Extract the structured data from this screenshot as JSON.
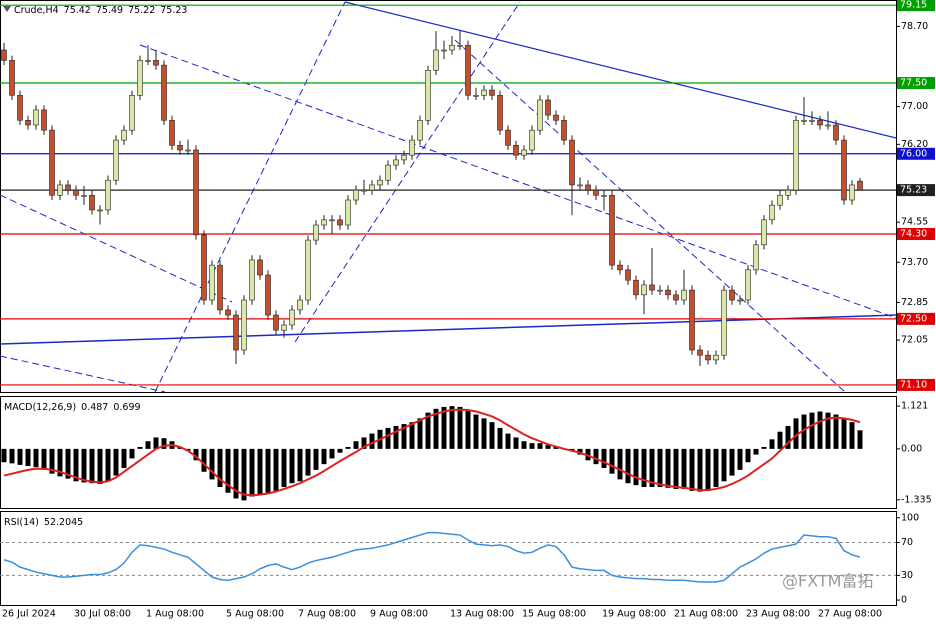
{
  "chart_data": [
    {
      "type": "candlestick",
      "title": "Crude,H4",
      "up_color": "#dbe9a8",
      "down_color": "#c2502e",
      "ylim": [
        70.95,
        79.26
      ],
      "yticks": [
        {
          "value": 78.7,
          "label": "78.70"
        },
        {
          "value": 77,
          "label": "77.00"
        },
        {
          "value": 76.2,
          "label": "76.20"
        },
        74.55,
        {
          "value": 73.7,
          "label": "73.70"
        },
        72.85,
        72.05
      ],
      "levels": [
        {
          "value": 79.15,
          "color": "#00a000"
        },
        {
          "value": 77.5,
          "label": "77.50",
          "color": "#00a000"
        },
        {
          "value": 76,
          "label": "76.00",
          "color": "#1010d0"
        },
        {
          "value": 75.23,
          "color": "#202020"
        },
        {
          "value": 74.3,
          "label": "74.30",
          "color": "#e00000"
        },
        {
          "value": 72.5,
          "label": "72.50",
          "color": "#e00000"
        },
        {
          "value": 71.1,
          "label": "71.10",
          "color": "#e00000"
        }
      ],
      "candles": [
        [
          78.2,
          78.35,
          77.88,
          77.98
        ],
        [
          77.98,
          78.08,
          77.14,
          77.24
        ],
        [
          77.24,
          77.34,
          76.61,
          76.71
        ],
        [
          76.71,
          76.81,
          76.51,
          76.61
        ],
        [
          76.61,
          77.03,
          76.51,
          76.93
        ],
        [
          76.93,
          77.03,
          76.4,
          76.5
        ],
        [
          76.5,
          76.6,
          75.02,
          75.12
        ],
        [
          75.12,
          75.44,
          75.02,
          75.34
        ],
        [
          75.34,
          75.44,
          75.13,
          75.23
        ],
        [
          75.23,
          75.33,
          75.02,
          75.12
        ],
        [
          75.12,
          75.32,
          74.92,
          75.12
        ],
        [
          75.12,
          75.22,
          74.71,
          74.81
        ],
        [
          74.81,
          74.91,
          74.5,
          74.81
        ],
        [
          74.81,
          75.54,
          74.71,
          75.44
        ],
        [
          75.44,
          76.39,
          75.34,
          76.29
        ],
        [
          76.29,
          76.6,
          76.19,
          76.5
        ],
        [
          76.5,
          77.34,
          76.4,
          77.24
        ],
        [
          77.24,
          78.08,
          77.14,
          77.98
        ],
        [
          77.98,
          78.3,
          77.88,
          77.98
        ],
        [
          77.98,
          78.2,
          77.78,
          77.88
        ],
        [
          77.88,
          77.98,
          76.61,
          76.71
        ],
        [
          76.71,
          76.81,
          76.08,
          76.18
        ],
        [
          76.18,
          76.28,
          75.98,
          76.08
        ],
        [
          76.08,
          76.3,
          75.98,
          76.08
        ],
        [
          76.08,
          76.18,
          74.18,
          74.28
        ],
        [
          74.28,
          74.38,
          72.8,
          72.9
        ],
        [
          72.9,
          73.74,
          72.8,
          73.64
        ],
        [
          73.64,
          73.74,
          72.59,
          72.69
        ],
        [
          72.69,
          72.79,
          72.48,
          72.58
        ],
        [
          72.58,
          72.68,
          71.54,
          71.84
        ],
        [
          71.84,
          73.0,
          71.74,
          72.9
        ],
        [
          72.9,
          73.85,
          72.8,
          73.75
        ],
        [
          73.75,
          73.85,
          73.33,
          73.43
        ],
        [
          73.43,
          73.53,
          72.48,
          72.58
        ],
        [
          72.58,
          72.68,
          72.16,
          72.26
        ],
        [
          72.26,
          72.47,
          72.1,
          72.37
        ],
        [
          72.37,
          72.79,
          72.27,
          72.69
        ],
        [
          72.69,
          73.0,
          72.59,
          72.9
        ],
        [
          72.9,
          74.27,
          72.8,
          74.17
        ],
        [
          74.17,
          74.59,
          74.07,
          74.49
        ],
        [
          74.49,
          74.7,
          74.39,
          74.6
        ],
        [
          74.6,
          74.7,
          74.3,
          74.6
        ],
        [
          74.6,
          74.7,
          74.39,
          74.49
        ],
        [
          74.49,
          75.12,
          74.39,
          75.02
        ],
        [
          75.02,
          75.33,
          74.92,
          75.23
        ],
        [
          75.23,
          75.45,
          75.13,
          75.23
        ],
        [
          75.23,
          75.44,
          75.13,
          75.34
        ],
        [
          75.34,
          75.54,
          75.24,
          75.44
        ],
        [
          75.44,
          75.86,
          75.34,
          75.76
        ],
        [
          75.76,
          75.97,
          75.66,
          75.87
        ],
        [
          75.87,
          76.07,
          75.77,
          75.97
        ],
        [
          75.97,
          76.39,
          75.87,
          76.29
        ],
        [
          76.29,
          76.81,
          76.19,
          76.71
        ],
        [
          76.71,
          77.87,
          76.61,
          77.77
        ],
        [
          77.77,
          78.6,
          77.67,
          78.2
        ],
        [
          78.2,
          78.4,
          78.0,
          78.2
        ],
        [
          78.2,
          78.5,
          78.1,
          78.3
        ],
        [
          78.3,
          78.6,
          78.2,
          78.3
        ],
        [
          78.3,
          78.4,
          77.14,
          77.24
        ],
        [
          77.24,
          77.4,
          77.14,
          77.24
        ],
        [
          77.24,
          77.45,
          77.14,
          77.35
        ],
        [
          77.35,
          77.45,
          77.14,
          77.24
        ],
        [
          77.24,
          77.34,
          76.4,
          76.5
        ],
        [
          76.5,
          76.6,
          76.08,
          76.18
        ],
        [
          76.18,
          76.28,
          75.87,
          75.97
        ],
        [
          75.97,
          76.18,
          75.87,
          76.08
        ],
        [
          76.08,
          76.6,
          75.98,
          76.5
        ],
        [
          76.5,
          77.24,
          76.4,
          77.14
        ],
        [
          77.14,
          77.24,
          76.72,
          76.82
        ],
        [
          76.82,
          76.92,
          76.61,
          76.71
        ],
        [
          76.71,
          76.81,
          76.19,
          76.29
        ],
        [
          76.29,
          76.39,
          74.7,
          75.34
        ],
        [
          75.34,
          75.5,
          75.24,
          75.34
        ],
        [
          75.34,
          75.44,
          75.13,
          75.23
        ],
        [
          75.23,
          75.33,
          75.02,
          75.12
        ],
        [
          75.12,
          75.22,
          74.8,
          75.12
        ],
        [
          75.12,
          75.22,
          73.54,
          73.64
        ],
        [
          73.64,
          73.74,
          73.44,
          73.54
        ],
        [
          73.54,
          73.64,
          73.22,
          73.32
        ],
        [
          73.32,
          73.42,
          72.91,
          73.01
        ],
        [
          73.01,
          73.32,
          72.6,
          73.22
        ],
        [
          73.22,
          74.0,
          73.01,
          73.11
        ],
        [
          73.11,
          73.21,
          73.01,
          73.11
        ],
        [
          73.11,
          73.21,
          72.91,
          73.01
        ],
        [
          73.01,
          73.11,
          72.8,
          72.9
        ],
        [
          72.9,
          73.54,
          72.8,
          73.11
        ],
        [
          73.11,
          73.21,
          71.74,
          71.84
        ],
        [
          71.84,
          71.94,
          71.5,
          71.73
        ],
        [
          71.73,
          71.83,
          71.53,
          71.63
        ],
        [
          71.63,
          71.83,
          71.53,
          71.73
        ],
        [
          71.73,
          73.21,
          71.63,
          73.11
        ],
        [
          73.11,
          73.21,
          72.8,
          72.9
        ],
        [
          72.9,
          73.0,
          72.8,
          72.9
        ],
        [
          72.9,
          73.64,
          72.8,
          73.54
        ],
        [
          73.54,
          74.17,
          73.44,
          74.07
        ],
        [
          74.07,
          74.7,
          73.97,
          74.6
        ],
        [
          74.6,
          75.01,
          74.5,
          74.91
        ],
        [
          74.91,
          75.22,
          74.81,
          75.12
        ],
        [
          75.12,
          75.33,
          75.02,
          75.23
        ],
        [
          75.23,
          76.81,
          75.13,
          76.71
        ],
        [
          76.71,
          77.2,
          76.61,
          76.71
        ],
        [
          76.71,
          76.9,
          76.61,
          76.71
        ],
        [
          76.71,
          76.81,
          76.51,
          76.61
        ],
        [
          76.61,
          76.9,
          76.51,
          76.61
        ],
        [
          76.61,
          76.71,
          76.19,
          76.29
        ],
        [
          76.29,
          76.39,
          74.92,
          75.02
        ],
        [
          75.02,
          75.44,
          74.92,
          75.34
        ],
        [
          75.42,
          75.49,
          75.22,
          75.23
        ]
      ]
    },
    {
      "type": "macd",
      "title": "MACD(12,26,9)",
      "ylim": [
        -1.55,
        1.36
      ],
      "yticks": [
        1.121,
        {
          "value": 0,
          "label": "0.00"
        },
        -1.335
      ],
      "series": [
        {
          "color": "#000000",
          "values": [
            -0.35,
            -0.38,
            -0.42,
            -0.45,
            -0.48,
            -0.55,
            -0.65,
            -0.72,
            -0.78,
            -0.85,
            -0.88,
            -0.9,
            -0.92,
            -0.85,
            -0.7,
            -0.5,
            -0.25,
            0.05,
            0.2,
            0.3,
            0.28,
            0.2,
            0.05,
            -0.05,
            -0.3,
            -0.6,
            -0.8,
            -1.0,
            -1.15,
            -1.3,
            -1.35,
            -1.25,
            -1.2,
            -1.15,
            -1.1,
            -1.0,
            -0.9,
            -0.85,
            -0.7,
            -0.55,
            -0.4,
            -0.25,
            -0.1,
            0.05,
            0.2,
            0.3,
            0.4,
            0.5,
            0.55,
            0.6,
            0.65,
            0.7,
            0.8,
            0.95,
            1.05,
            1.1,
            1.12,
            1.1,
            1.0,
            0.9,
            0.8,
            0.7,
            0.55,
            0.4,
            0.3,
            0.2,
            0.15,
            0.15,
            0.1,
            0.05,
            0.0,
            -0.05,
            -0.15,
            -0.3,
            -0.4,
            -0.5,
            -0.65,
            -0.8,
            -0.9,
            -0.95,
            -1.0,
            -1.0,
            -1.0,
            -1.02,
            -1.05,
            -1.05,
            -1.1,
            -1.12,
            -1.1,
            -1.0,
            -0.85,
            -0.7,
            -0.55,
            -0.35,
            -0.15,
            0.05,
            0.25,
            0.45,
            0.6,
            0.8,
            0.9,
            0.95,
            0.98,
            0.95,
            0.9,
            0.8,
            0.7,
            0.487
          ]
        },
        {
          "color": "#e02020",
          "values": [
            -0.7,
            -0.65,
            -0.6,
            -0.55,
            -0.52,
            -0.52,
            -0.55,
            -0.6,
            -0.68,
            -0.75,
            -0.82,
            -0.86,
            -0.88,
            -0.85,
            -0.75,
            -0.6,
            -0.45,
            -0.3,
            -0.15,
            0.0,
            0.08,
            0.1,
            0.05,
            -0.05,
            -0.2,
            -0.4,
            -0.6,
            -0.8,
            -0.95,
            -1.1,
            -1.2,
            -1.22,
            -1.2,
            -1.17,
            -1.12,
            -1.05,
            -0.98,
            -0.9,
            -0.8,
            -0.7,
            -0.58,
            -0.45,
            -0.32,
            -0.2,
            -0.08,
            0.05,
            0.15,
            0.25,
            0.35,
            0.45,
            0.55,
            0.65,
            0.75,
            0.85,
            0.92,
            0.98,
            1.02,
            1.03,
            1.02,
            0.98,
            0.92,
            0.85,
            0.75,
            0.62,
            0.5,
            0.38,
            0.28,
            0.2,
            0.12,
            0.06,
            0.0,
            -0.05,
            -0.1,
            -0.18,
            -0.26,
            -0.35,
            -0.45,
            -0.55,
            -0.65,
            -0.75,
            -0.82,
            -0.88,
            -0.93,
            -0.97,
            -1.0,
            -1.02,
            -1.05,
            -1.08,
            -1.08,
            -1.05,
            -1.0,
            -0.92,
            -0.82,
            -0.7,
            -0.55,
            -0.4,
            -0.25,
            -0.05,
            0.15,
            0.35,
            0.5,
            0.62,
            0.72,
            0.8,
            0.82,
            0.8,
            0.76,
            0.699
          ]
        }
      ]
    },
    {
      "type": "line",
      "title": "RSI(14)",
      "ylim": [
        -6,
        107
      ],
      "yticks": [
        100,
        70,
        30,
        0
      ],
      "levels": [
        70,
        30
      ],
      "categories": [
        "26 Jul 2024",
        null,
        null,
        null,
        null,
        null,
        null,
        null,
        null,
        "30 Jul 08:00",
        null,
        null,
        null,
        null,
        null,
        null,
        null,
        null,
        "1 Aug 08:00",
        null,
        null,
        null,
        null,
        null,
        null,
        null,
        null,
        null,
        "5 Aug 08:00",
        null,
        null,
        null,
        null,
        null,
        null,
        null,
        null,
        "7 Aug 08:00",
        null,
        null,
        null,
        null,
        null,
        null,
        null,
        null,
        "9 Aug 08:00",
        null,
        null,
        null,
        null,
        null,
        null,
        null,
        null,
        null,
        "13 Aug 08:00",
        null,
        null,
        null,
        null,
        null,
        null,
        null,
        null,
        "15 Aug 08:00",
        null,
        null,
        null,
        null,
        null,
        null,
        null,
        null,
        null,
        "19 Aug 08:00",
        null,
        null,
        null,
        null,
        null,
        null,
        null,
        null,
        "21 Aug 08:00",
        null,
        null,
        null,
        null,
        null,
        null,
        null,
        null,
        "23 Aug 08:00",
        null,
        null,
        null,
        null,
        null,
        null,
        null,
        null,
        "27 Aug 08:00",
        null,
        null,
        null,
        null,
        null
      ],
      "series": [
        {
          "color": "#3a8fdc",
          "values": [
            49,
            46,
            40,
            37,
            34,
            32,
            30,
            28,
            28,
            29,
            30,
            31,
            31,
            33,
            37,
            45,
            58,
            67,
            66,
            64,
            62,
            58,
            55,
            52,
            44,
            36,
            28,
            25,
            24,
            26,
            28,
            32,
            38,
            42,
            44,
            40,
            37,
            40,
            45,
            48,
            50,
            52,
            55,
            58,
            61,
            62,
            63,
            65,
            67,
            70,
            73,
            76,
            79,
            82,
            82,
            81,
            80,
            79,
            73,
            68,
            67,
            66,
            67,
            65,
            60,
            57,
            58,
            63,
            67,
            65,
            55,
            40,
            38,
            37,
            36,
            36,
            30,
            28,
            27,
            26,
            26,
            25,
            25,
            24,
            24,
            24,
            23,
            22,
            22,
            22,
            24,
            32,
            40,
            45,
            50,
            57,
            62,
            64,
            66,
            68,
            79,
            78,
            77,
            77,
            75,
            60,
            55,
            52.2045
          ]
        }
      ]
    }
  ],
  "watermark": "@FXTM富拓"
}
